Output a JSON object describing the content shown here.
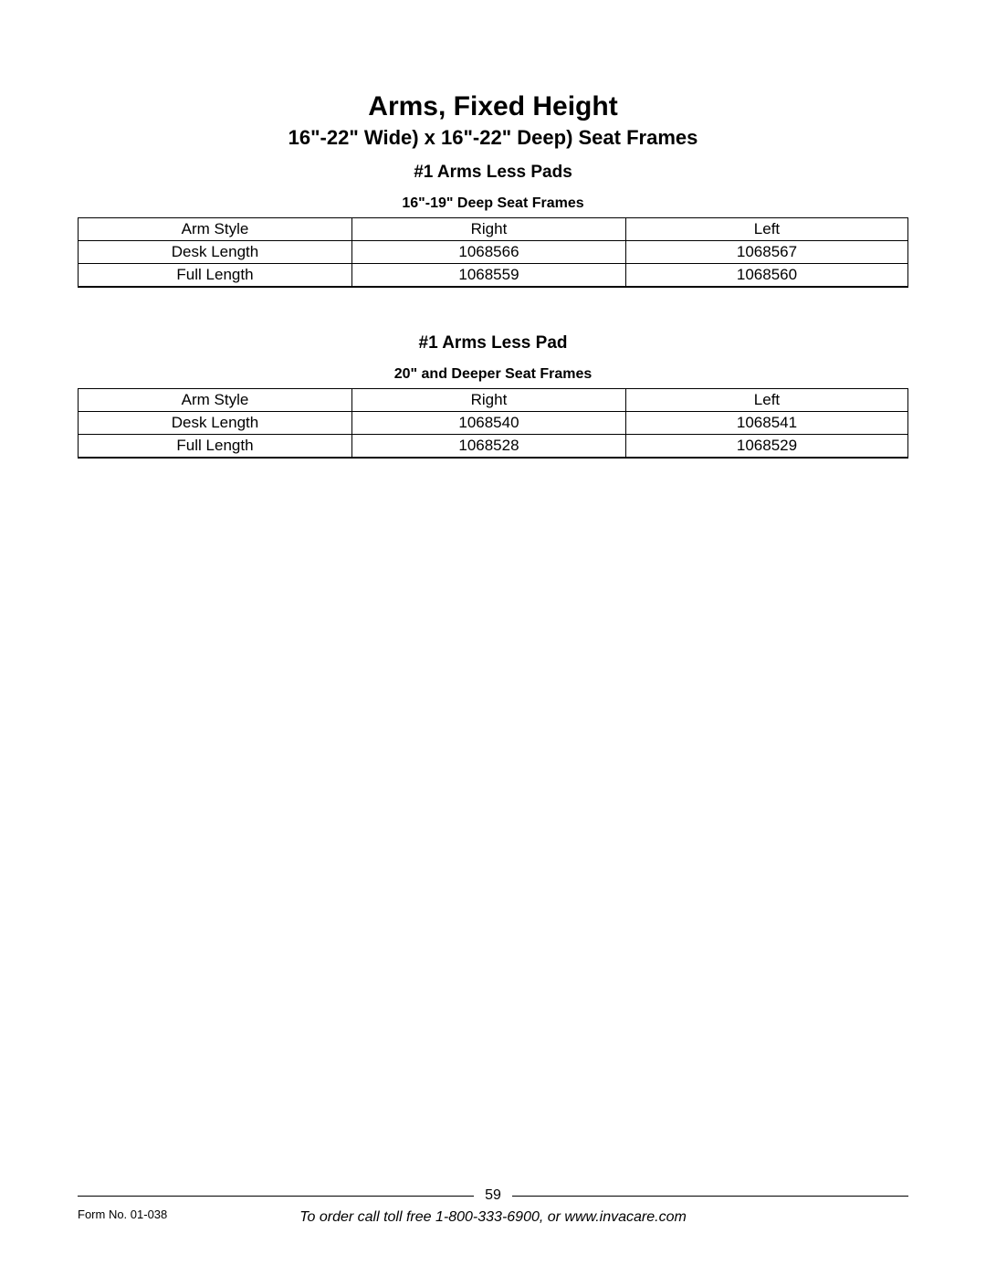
{
  "page": {
    "main_title": "Arms, Fixed Height",
    "subtitle": "16\"-22\" Wide) x 16\"-22\" Deep) Seat Frames",
    "page_number": "59",
    "form_number": "Form No. 01-038",
    "order_info": "To order call toll free 1-800-333-6900, or www.invacare.com"
  },
  "section1": {
    "title": "#1 Arms Less Pads",
    "table_title": "16\"-19\" Deep Seat Frames",
    "table": {
      "headers": {
        "col1": "Arm Style",
        "col2": "Right",
        "col3": "Left"
      },
      "rows": [
        {
          "col1": "Desk Length",
          "col2": "1068566",
          "col3": "1068567"
        },
        {
          "col1": "Full Length",
          "col2": "1068559",
          "col3": "1068560"
        }
      ]
    }
  },
  "section2": {
    "title": "#1 Arms Less Pad",
    "table_title": "20\" and Deeper Seat Frames",
    "table": {
      "headers": {
        "col1": "Arm Style",
        "col2": "Right",
        "col3": "Left"
      },
      "rows": [
        {
          "col1": "Desk Length",
          "col2": "1068540",
          "col3": "1068541"
        },
        {
          "col1": "Full Length",
          "col2": "1068528",
          "col3": "1068529"
        }
      ]
    }
  },
  "styling": {
    "background_color": "#ffffff",
    "text_color": "#000000",
    "border_color": "#000000",
    "main_title_fontsize": 30,
    "subtitle_fontsize": 22,
    "section_title_fontsize": 19,
    "table_title_fontsize": 16,
    "cell_fontsize": 17,
    "footer_fontsize": 16,
    "form_number_fontsize": 13
  }
}
